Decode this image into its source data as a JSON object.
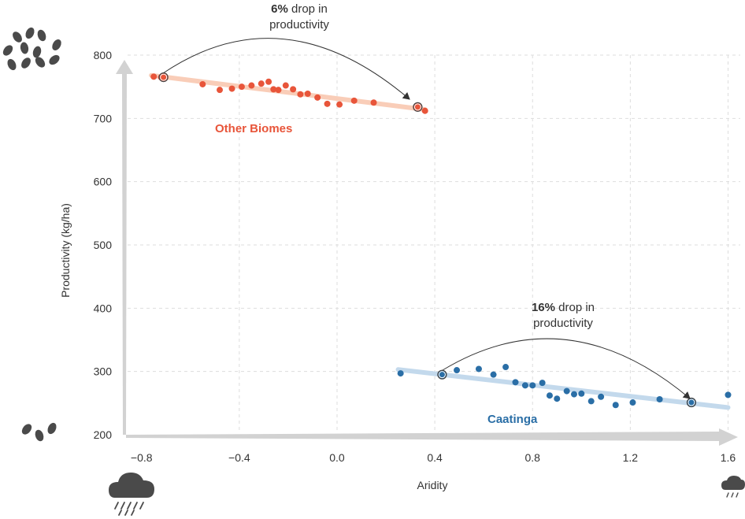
{
  "chart_data": {
    "type": "scatter",
    "xlabel": "Aridity",
    "ylabel": "Productivity (kg/ha)",
    "x_ticks": [
      "−0.8",
      "−0.4",
      "0.0",
      "0.4",
      "0.8",
      "1.2",
      "1.6"
    ],
    "y_ticks": [
      "200",
      "300",
      "400",
      "500",
      "600",
      "700",
      "800"
    ],
    "xlim": [
      -0.87,
      1.65
    ],
    "ylim": [
      200,
      800
    ],
    "grid": true,
    "colors": {
      "other": "#e8553a",
      "other_line": "#f9cdb8",
      "caatinga": "#2a6ea6",
      "caatinga_line": "#c3d9ec",
      "axis": "#d2d2d2",
      "icon": "#4a4a4a"
    },
    "series": [
      {
        "name": "Other Biomes",
        "points": [
          [
            -0.75,
            766
          ],
          [
            -0.72,
            765
          ],
          [
            -0.55,
            754
          ],
          [
            -0.48,
            745
          ],
          [
            -0.43,
            747
          ],
          [
            -0.39,
            750
          ],
          [
            -0.35,
            752
          ],
          [
            -0.31,
            755
          ],
          [
            -0.28,
            758
          ],
          [
            -0.26,
            746
          ],
          [
            -0.24,
            745
          ],
          [
            -0.21,
            752
          ],
          [
            -0.18,
            746
          ],
          [
            -0.15,
            738
          ],
          [
            -0.12,
            739
          ],
          [
            -0.08,
            733
          ],
          [
            -0.04,
            723
          ],
          [
            0.01,
            722
          ],
          [
            0.07,
            728
          ],
          [
            0.15,
            725
          ],
          [
            0.33,
            718
          ],
          [
            0.36,
            712
          ]
        ],
        "trend": [
          [
            -0.76,
            768
          ],
          [
            0.36,
            714
          ]
        ],
        "highlights": [
          [
            -0.71,
            765
          ],
          [
            0.33,
            718
          ]
        ]
      },
      {
        "name": "Caatinga",
        "points": [
          [
            0.26,
            297
          ],
          [
            0.43,
            295
          ],
          [
            0.49,
            302
          ],
          [
            0.58,
            304
          ],
          [
            0.64,
            295
          ],
          [
            0.69,
            307
          ],
          [
            0.73,
            283
          ],
          [
            0.77,
            278
          ],
          [
            0.8,
            278
          ],
          [
            0.84,
            282
          ],
          [
            0.87,
            262
          ],
          [
            0.9,
            257
          ],
          [
            0.94,
            269
          ],
          [
            0.97,
            264
          ],
          [
            1.0,
            265
          ],
          [
            1.04,
            253
          ],
          [
            1.08,
            260
          ],
          [
            1.14,
            247
          ],
          [
            1.21,
            251
          ],
          [
            1.32,
            256
          ],
          [
            1.45,
            251
          ],
          [
            1.6,
            263
          ]
        ],
        "trend": [
          [
            0.25,
            303
          ],
          [
            1.6,
            243
          ]
        ],
        "highlights": [
          [
            0.43,
            295
          ],
          [
            1.45,
            251
          ]
        ]
      }
    ],
    "annotations": [
      {
        "bold": "6%",
        "rest": " drop in",
        "line2": "productivity"
      },
      {
        "bold": "16%",
        "rest": " drop in",
        "line2": "productivity"
      }
    ],
    "icons": [
      "dense-grazing-animals-icon",
      "sparse-grazing-animals-icon",
      "heavy-rain-cloud-icon",
      "light-rain-cloud-icon"
    ]
  }
}
